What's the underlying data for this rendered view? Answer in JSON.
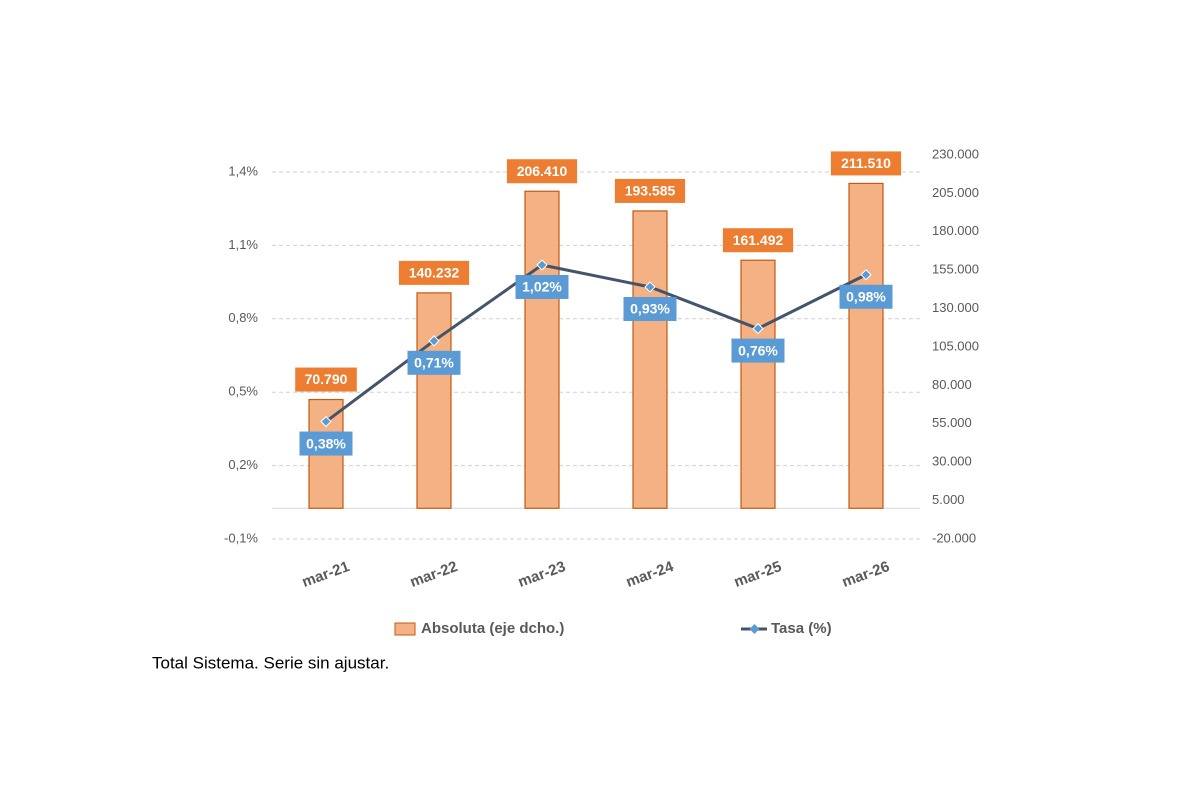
{
  "chart_data": {
    "type": "combo",
    "categories": [
      "mar-21",
      "mar-22",
      "mar-23",
      "mar-24",
      "mar-25",
      "mar-26"
    ],
    "series": [
      {
        "name": "Absoluta (eje dcho.)",
        "type": "bar",
        "axis": "y2",
        "color": "#f4b183",
        "edge_color": "#c55a11",
        "label_color": "#ed7d31",
        "values": [
          70790,
          140232,
          206410,
          193585,
          161492,
          211510
        ],
        "value_labels": [
          "70.790",
          "140.232",
          "206.410",
          "193.585",
          "161.492",
          "211.510"
        ]
      },
      {
        "name": "Tasa (%)",
        "type": "line",
        "color": "#44546a",
        "marker_color": "#5b9bd5",
        "label_color": "#5b9bd5",
        "values": [
          0.38,
          0.71,
          1.02,
          0.93,
          0.76,
          0.98
        ],
        "value_labels": [
          "0,38%",
          "0,71%",
          "1,02%",
          "0,93%",
          "0,76%",
          "0,98%"
        ]
      }
    ],
    "ylim": [
      -0.1,
      1.4
    ],
    "yticks": [
      {
        "value": -0.1,
        "label": "-0,1%"
      },
      {
        "value": 0.2,
        "label": "0,2%"
      },
      {
        "value": 0.5,
        "label": "0,5%"
      },
      {
        "value": 0.8,
        "label": "0,8%"
      },
      {
        "value": 1.1,
        "label": "1,1%"
      },
      {
        "value": 1.4,
        "label": "1,4%"
      }
    ],
    "y2lim": [
      -20000,
      230000
    ],
    "y2ticks": [
      {
        "value": -20000,
        "label": "-20.000"
      },
      {
        "value": 5000,
        "label": "5.000"
      },
      {
        "value": 30000,
        "label": "30.000"
      },
      {
        "value": 55000,
        "label": "55.000"
      },
      {
        "value": 80000,
        "label": "80.000"
      },
      {
        "value": 105000,
        "label": "105.000"
      },
      {
        "value": 130000,
        "label": "130.000"
      },
      {
        "value": 155000,
        "label": "155.000"
      },
      {
        "value": 180000,
        "label": "180.000"
      },
      {
        "value": 205000,
        "label": "205.000"
      },
      {
        "value": 230000,
        "label": "230.000"
      }
    ],
    "grid": true,
    "caption": "Total Sistema. Serie sin ajustar."
  }
}
